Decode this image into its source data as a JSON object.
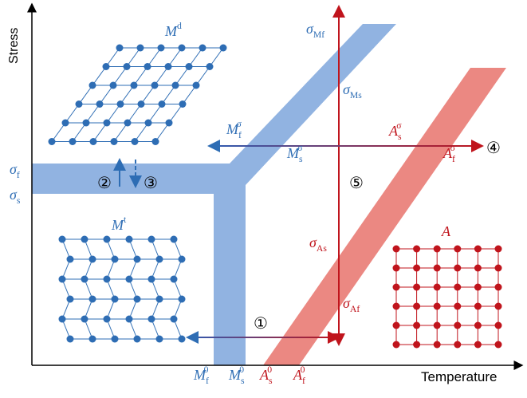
{
  "axes": {
    "y_label": "Stress",
    "x_label": "Temperature"
  },
  "phases": [
    {
      "base": "M",
      "sup": "d"
    },
    {
      "base": "M",
      "sup": "t"
    },
    {
      "base": "A"
    }
  ],
  "labels": [
    {
      "base": "σ",
      "sub": "f"
    },
    {
      "base": "σ",
      "sub": "s"
    },
    {
      "base": "σ",
      "sub": "Mf"
    },
    {
      "base": "σ",
      "sub": "Ms"
    },
    {
      "base": "M",
      "sub": "f",
      "sup": "σ"
    },
    {
      "base": "M",
      "sub": "s",
      "sup": "σ"
    },
    {
      "base": "A",
      "sub": "s",
      "sup": "σ"
    },
    {
      "base": "A",
      "sub": "f",
      "sup": "σ"
    },
    {
      "base": "σ",
      "sub": "As"
    },
    {
      "base": "σ",
      "sub": "Af"
    },
    {
      "base": "M",
      "sub": "f",
      "sup": "0"
    },
    {
      "base": "M",
      "sub": "s",
      "sup": "0"
    },
    {
      "base": "A",
      "sub": "s",
      "sup": "0"
    },
    {
      "base": "A",
      "sub": "f",
      "sup": "0"
    }
  ],
  "steps": [
    "①",
    "②",
    "③",
    "④",
    "⑤"
  ]
}
